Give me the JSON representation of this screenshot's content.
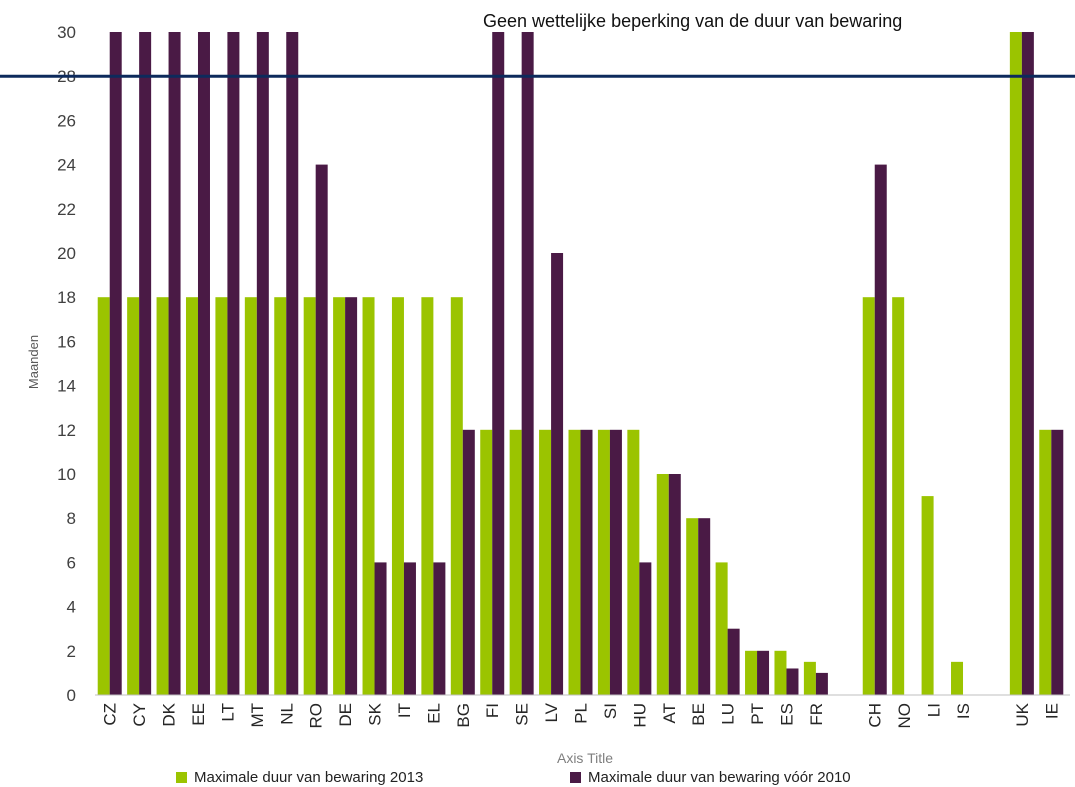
{
  "chart_data": {
    "type": "bar",
    "title": "",
    "ylabel": "Maanden",
    "xlabel": "Axis Title",
    "ylim": [
      0,
      30
    ],
    "yticks": [
      0,
      2,
      4,
      6,
      8,
      10,
      12,
      14,
      16,
      18,
      20,
      22,
      24,
      26,
      28,
      30
    ],
    "grid": false,
    "legend_position": "bottom",
    "categories": [
      "CZ",
      "CY",
      "DK",
      "EE",
      "LT",
      "MT",
      "NL",
      "RO",
      "DE",
      "SK",
      "IT",
      "EL",
      "BG",
      "FI",
      "SE",
      "LV",
      "PL",
      "SI",
      "HU",
      "AT",
      "BE",
      "LU",
      "PT",
      "ES",
      "FR",
      "",
      "CH",
      "NO",
      "LI",
      "IS",
      "",
      "UK",
      "IE"
    ],
    "series": [
      {
        "name": "Maximale duur van bewaring 2013",
        "color": "#9bc400",
        "values": [
          18,
          18,
          18,
          18,
          18,
          18,
          18,
          18,
          18,
          18,
          18,
          18,
          18,
          12,
          12,
          12,
          12,
          12,
          12,
          10,
          8,
          6,
          2,
          2,
          1.5,
          null,
          18,
          18,
          9,
          1.5,
          null,
          30,
          12
        ]
      },
      {
        "name": "Maximale duur van bewaring vóór 2010",
        "color": "#4a1a45",
        "values": [
          30,
          30,
          30,
          30,
          30,
          30,
          30,
          24,
          18,
          6,
          6,
          6,
          12,
          30,
          30,
          20,
          12,
          12,
          6,
          10,
          8,
          3,
          2,
          1.2,
          1,
          null,
          24,
          null,
          null,
          null,
          null,
          30,
          12
        ]
      }
    ],
    "reference_line": {
      "value": 28,
      "label": "Geen wettelijke beperking van de duur van bewaring",
      "color": "#0d2a5c"
    }
  }
}
